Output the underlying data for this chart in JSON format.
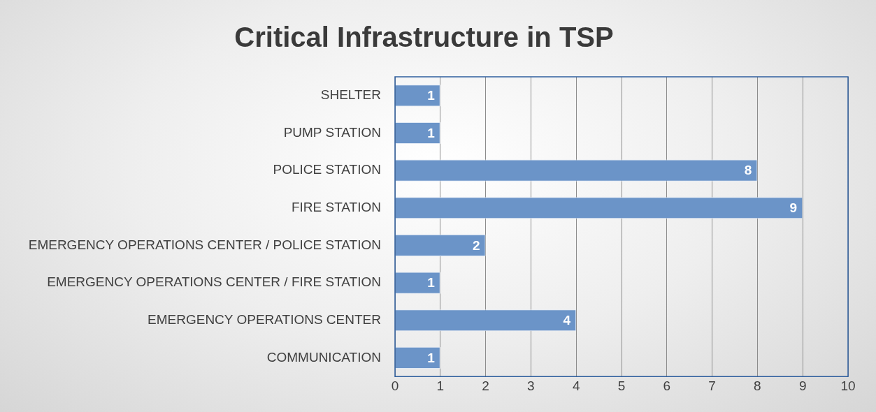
{
  "chart_data": {
    "type": "bar",
    "orientation": "horizontal",
    "title": "Critical Infrastructure in TSP",
    "categories": [
      "SHELTER",
      "PUMP STATION",
      "POLICE STATION",
      "FIRE STATION",
      "EMERGENCY OPERATIONS CENTER / POLICE STATION",
      "EMERGENCY OPERATIONS CENTER / FIRE STATION",
      "EMERGENCY OPERATIONS CENTER",
      "COMMUNICATION"
    ],
    "values": [
      1,
      1,
      8,
      9,
      2,
      1,
      4,
      1
    ],
    "color": "#6b94c8",
    "xlim": [
      0,
      10
    ],
    "xticks": [
      0,
      1,
      2,
      3,
      4,
      5,
      6,
      7,
      8,
      9,
      10
    ],
    "grid": "x",
    "data_labels": true,
    "legend": false
  }
}
